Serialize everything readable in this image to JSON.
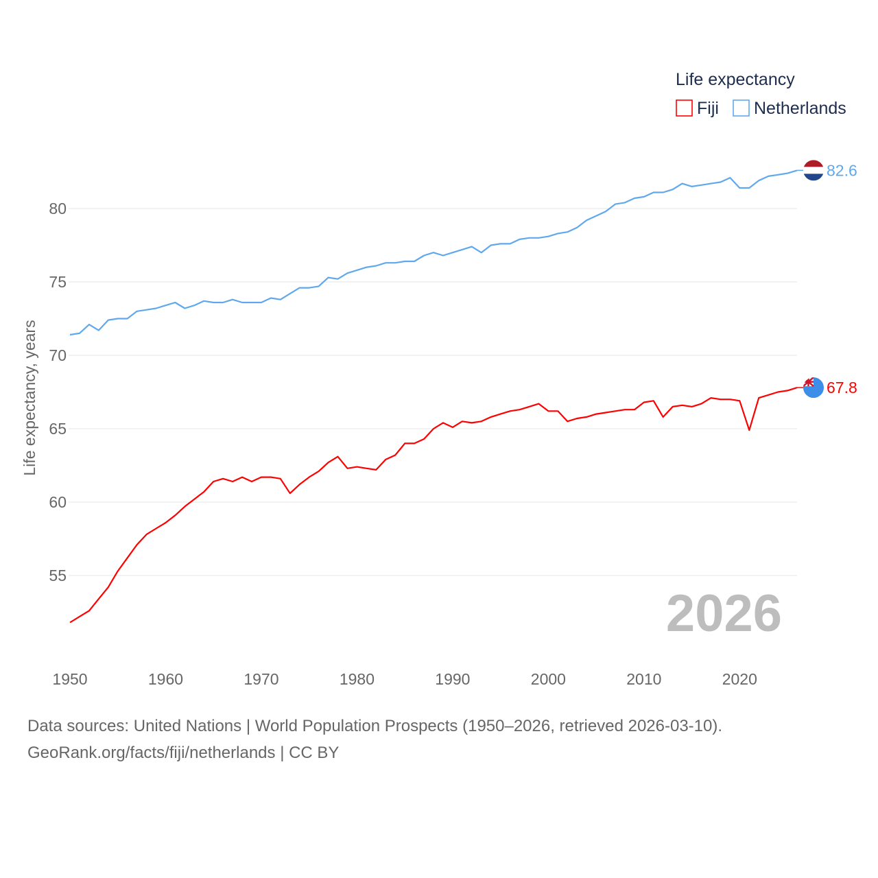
{
  "chart_data": {
    "type": "line",
    "title": "",
    "xlabel": "",
    "ylabel": "Life expectancy, years",
    "xlim": [
      1950,
      2026
    ],
    "ylim": [
      50.3,
      83.5
    ],
    "x_ticks": [
      1950,
      1960,
      1970,
      1980,
      1990,
      2000,
      2010,
      2020
    ],
    "y_ticks": [
      55,
      60,
      65,
      70,
      75,
      80
    ],
    "grid": true,
    "legend": {
      "title": "Life expectancy",
      "placement": "top-right"
    },
    "year_label": "2026",
    "x": [
      1950,
      1951,
      1952,
      1953,
      1954,
      1955,
      1956,
      1957,
      1958,
      1959,
      1960,
      1961,
      1962,
      1963,
      1964,
      1965,
      1966,
      1967,
      1968,
      1969,
      1970,
      1971,
      1972,
      1973,
      1974,
      1975,
      1976,
      1977,
      1978,
      1979,
      1980,
      1981,
      1982,
      1983,
      1984,
      1985,
      1986,
      1987,
      1988,
      1989,
      1990,
      1991,
      1992,
      1993,
      1994,
      1995,
      1996,
      1997,
      1998,
      1999,
      2000,
      2001,
      2002,
      2003,
      2004,
      2005,
      2006,
      2007,
      2008,
      2009,
      2010,
      2011,
      2012,
      2013,
      2014,
      2015,
      2016,
      2017,
      2018,
      2019,
      2020,
      2021,
      2022,
      2023,
      2024,
      2025,
      2026
    ],
    "series": [
      {
        "name": "Fiji",
        "color": "#ff0000",
        "end_label": "67.8",
        "values": [
          51.8,
          52.2,
          52.6,
          53.4,
          54.2,
          55.3,
          56.2,
          57.1,
          57.8,
          58.2,
          58.6,
          59.1,
          59.7,
          60.2,
          60.7,
          61.4,
          61.6,
          61.4,
          61.7,
          61.4,
          61.7,
          61.7,
          61.6,
          60.6,
          61.2,
          61.7,
          62.1,
          62.7,
          63.1,
          62.3,
          62.4,
          62.3,
          62.2,
          62.9,
          63.2,
          64.0,
          64.0,
          64.3,
          65.0,
          65.4,
          65.1,
          65.5,
          65.4,
          65.5,
          65.8,
          66.0,
          66.2,
          66.3,
          66.5,
          66.7,
          66.2,
          66.2,
          65.5,
          65.7,
          65.8,
          66.0,
          66.1,
          66.2,
          66.3,
          66.3,
          66.8,
          66.9,
          65.8,
          66.5,
          66.6,
          66.5,
          66.7,
          67.1,
          67.0,
          67.0,
          66.9,
          64.9,
          67.1,
          67.3,
          67.5,
          67.6,
          67.8
        ]
      },
      {
        "name": "Netherlands",
        "color": "#5fa8ee",
        "end_label": "82.6",
        "values": [
          71.4,
          71.5,
          72.1,
          71.7,
          72.4,
          72.5,
          72.5,
          73.0,
          73.1,
          73.2,
          73.4,
          73.6,
          73.2,
          73.4,
          73.7,
          73.6,
          73.6,
          73.8,
          73.6,
          73.6,
          73.6,
          73.9,
          73.8,
          74.2,
          74.6,
          74.6,
          74.7,
          75.3,
          75.2,
          75.6,
          75.8,
          76.0,
          76.1,
          76.3,
          76.3,
          76.4,
          76.4,
          76.8,
          77.0,
          76.8,
          77.0,
          77.2,
          77.4,
          77.0,
          77.5,
          77.6,
          77.6,
          77.9,
          78.0,
          78.0,
          78.1,
          78.3,
          78.4,
          78.7,
          79.2,
          79.5,
          79.8,
          80.3,
          80.4,
          80.7,
          80.8,
          81.1,
          81.1,
          81.3,
          81.7,
          81.5,
          81.6,
          81.7,
          81.8,
          82.1,
          81.4,
          81.4,
          81.9,
          82.2,
          82.3,
          82.4,
          82.6
        ]
      }
    ]
  },
  "footer": {
    "sources": "Data sources: United Nations | World Population Prospects (1950–2026, retrieved 2026-03-10).",
    "credit": "GeoRank.org/facts/fiji/netherlands | CC BY"
  }
}
